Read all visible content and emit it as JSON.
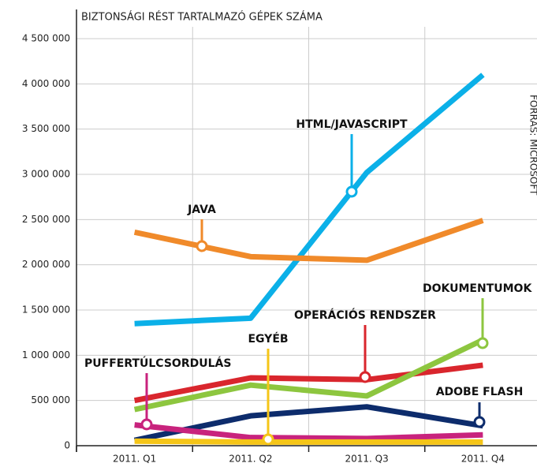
{
  "chart_data": {
    "type": "line",
    "title": "BIZTONSÁGI RÉST TARTALMAZÓ GÉPEK SZÁMA",
    "source": "FORRÁS: MICROSOFT",
    "categories": [
      "2011. Q1",
      "2011. Q2",
      "2011. Q3",
      "2011. Q4"
    ],
    "ylim": [
      0,
      4500000
    ],
    "yticks": [
      0,
      {
        "value": 500000,
        "label": "500 000"
      },
      {
        "value": 1000000,
        "label": "1 000 000"
      },
      {
        "value": 1500000,
        "label": "1 500 000"
      },
      {
        "value": 2000000,
        "label": "2 000 000"
      },
      {
        "value": 2500000,
        "label": "2 500 000"
      },
      {
        "value": 3000000,
        "label": "3 000 000"
      },
      {
        "value": 3500000,
        "label": "3 500 000"
      },
      {
        "value": 4000000,
        "label": "4 000 000"
      },
      {
        "value": 4500000,
        "label": "4 500 000"
      }
    ],
    "grid": true,
    "series": [
      {
        "name": "HTML/JAVASCRIPT",
        "color": "#0bb0e8",
        "values": [
          1350000,
          1410000,
          3020000,
          4100000
        ]
      },
      {
        "name": "JAVA",
        "color": "#f08a2a",
        "values": [
          2360000,
          2090000,
          2050000,
          2490000
        ]
      },
      {
        "name": "OPERÁCIÓS RENDSZER",
        "color": "#d9262d",
        "values": [
          500000,
          750000,
          730000,
          890000
        ]
      },
      {
        "name": "DOKUMENTUMOK",
        "color": "#8dc63f",
        "values": [
          400000,
          670000,
          550000,
          1170000
        ]
      },
      {
        "name": "ADOBE FLASH",
        "color": "#0d2c6c",
        "values": [
          60000,
          330000,
          430000,
          220000
        ]
      },
      {
        "name": "PUFFERTÚLCSORDULÁS",
        "color": "#c8237d",
        "values": [
          230000,
          90000,
          80000,
          120000
        ]
      },
      {
        "name": "EGYÉB",
        "color": "#f5c518",
        "values": [
          50000,
          40000,
          40000,
          40000
        ]
      }
    ]
  }
}
